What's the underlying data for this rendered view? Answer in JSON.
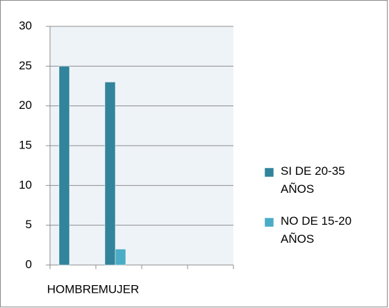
{
  "chart_data": {
    "type": "bar",
    "categories": [
      "HOMBRE",
      "MUJER",
      null,
      null
    ],
    "series": [
      {
        "name": "SI DE 20-35 AÑOS",
        "color": "#31849b",
        "values": [
          25,
          23,
          null,
          null
        ]
      },
      {
        "name": "NO DE 15-20 AÑOS",
        "color": "#4bacc6",
        "values": [
          0,
          2,
          null,
          null
        ]
      }
    ],
    "ylim": [
      0,
      30
    ],
    "yticks": [
      0,
      5,
      10,
      15,
      20,
      25,
      30
    ],
    "grid": true,
    "legend": "right"
  }
}
